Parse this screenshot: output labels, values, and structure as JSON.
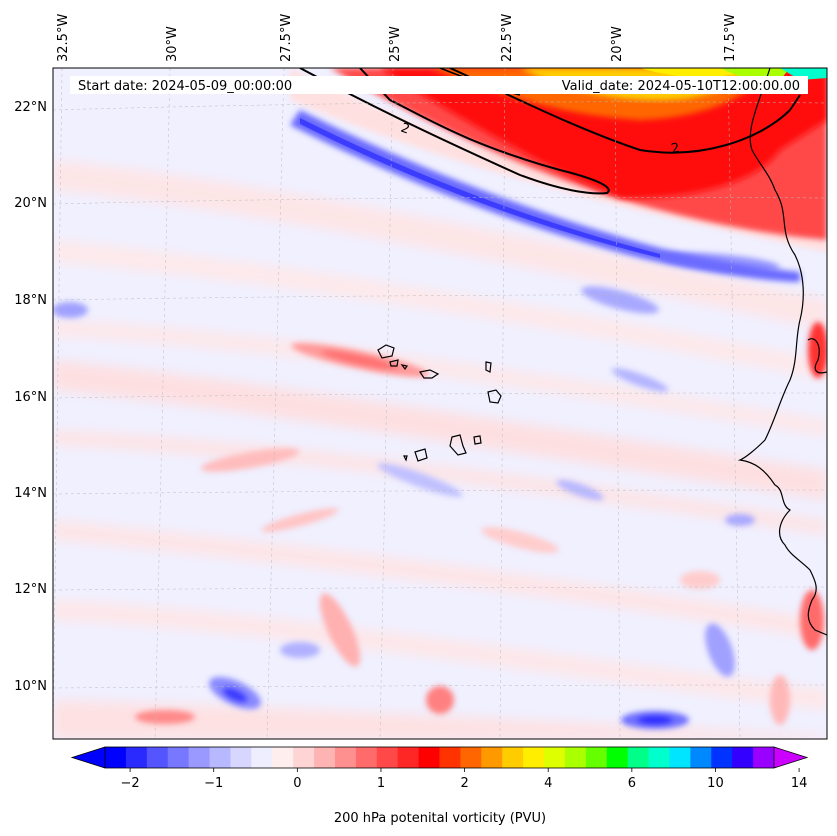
{
  "header": {
    "start_date": "Start date: 2024-05-09_00:00:00",
    "valid_date": "Valid_date: 2024-05-10T12:00:00.00"
  },
  "axes": {
    "lon_ticks": [
      "32.5°W",
      "30°W",
      "27.5°W",
      "25°W",
      "22.5°W",
      "20°W",
      "17.5°W"
    ],
    "lat_ticks": [
      "22°N",
      "20°N",
      "18°N",
      "16°N",
      "14°N",
      "12°N",
      "10°N"
    ]
  },
  "contour_label": "2",
  "colorbar": {
    "label": "200 hPa potenital vorticity (PVU)",
    "tick_labels": [
      "−2",
      "−1",
      "0",
      "1",
      "2",
      "4",
      "6",
      "10",
      "14"
    ],
    "colors": [
      "#0000ff",
      "#2a2aff",
      "#5555ff",
      "#7777ff",
      "#9999ff",
      "#b8b8ff",
      "#d6d6ff",
      "#eeeeff",
      "#ffeeee",
      "#ffd4d4",
      "#ffb4b4",
      "#ff9090",
      "#ff6a6a",
      "#ff4848",
      "#ff2626",
      "#ff0000",
      "#ff3300",
      "#ff6600",
      "#ff9900",
      "#ffcc00",
      "#ffee00",
      "#ddff00",
      "#aaff00",
      "#66ff00",
      "#00ff00",
      "#00ff88",
      "#00ffcc",
      "#00e5ff",
      "#0088ff",
      "#0033ff",
      "#3300ff",
      "#9900ff"
    ],
    "under_color": "#0000ff",
    "over_color": "#cc00ff"
  }
}
